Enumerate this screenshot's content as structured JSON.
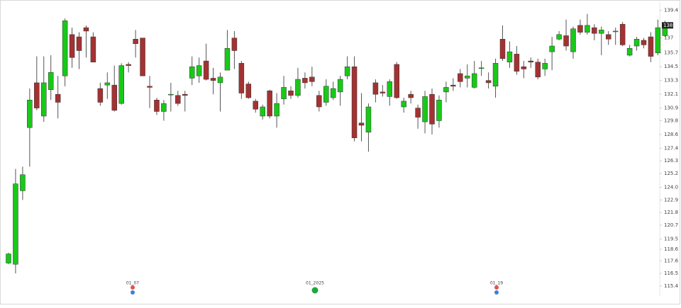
{
  "chart_data": {
    "type": "candlestick",
    "up_color": "#18c918",
    "down_color": "#a33232",
    "ylim": [
      114.6,
      140
    ],
    "yticks": [
      139.4,
      137,
      135.7,
      134.5,
      133.3,
      132.1,
      130.9,
      129.8,
      128.6,
      127.4,
      126.3,
      125.2,
      {
        "value": 124,
        "label": "124.0"
      },
      122.9,
      121.8,
      120.7,
      119.5,
      118.6,
      117.6,
      116.5,
      115.4
    ],
    "last_price": {
      "value": 138.1,
      "label": "138"
    },
    "annotations": [
      "01_07",
      "01_2025",
      "01_19"
    ],
    "open": [
      117.4,
      117.3,
      123.7,
      129.2,
      133.1,
      130.2,
      132.5,
      132.1,
      133.7,
      137.3,
      137.1,
      137.9,
      137.1,
      132.6,
      132.9,
      132.9,
      131.3,
      134.7,
      136.9,
      137.0,
      132.8,
      131.6,
      130.6,
      132.1,
      132.0,
      132.1,
      133.5,
      133.7,
      135.0,
      133.5,
      133.1,
      134.2,
      137.0,
      134.8,
      133.0,
      131.5,
      130.2,
      132.4,
      130.2,
      131.7,
      132.4,
      132.0,
      133.5,
      133.6,
      132.0,
      131.4,
      131.8,
      132.3,
      133.7,
      134.5,
      129.6,
      128.8,
      133.1,
      132.3,
      131.9,
      134.7,
      131.0,
      132.1,
      130.9,
      129.7,
      132.1,
      129.8,
      132.3,
      132.9,
      133.9,
      133.5,
      132.7,
      134.4,
      133.3,
      132.8,
      136.9,
      134.9,
      135.6,
      134.5,
      135.0,
      134.9,
      134.3,
      135.8,
      136.9,
      137.2,
      135.8,
      138.1,
      137.5,
      137.9,
      137.4,
      137.3,
      137.6,
      138.2,
      135.5,
      136.3,
      136.8,
      137.1,
      135.7,
      137.2
    ],
    "high": [
      118.3,
      125.6,
      125.8,
      132.6,
      135.4,
      135.4,
      135.5,
      133.7,
      138.7,
      137.9,
      137.5,
      138.1,
      137.5,
      133.1,
      134.0,
      134.6,
      134.8,
      134.9,
      137.7,
      137.0,
      133.7,
      131.8,
      131.6,
      133.1,
      132.4,
      132.4,
      135.4,
      135.3,
      136.5,
      134.4,
      134.0,
      137.7,
      137.6,
      135.0,
      133.2,
      131.7,
      131.2,
      132.5,
      132.2,
      133.7,
      132.8,
      134.4,
      134.0,
      134.5,
      132.4,
      133.4,
      133.2,
      133.7,
      135.4,
      135.4,
      132.2,
      131.3,
      133.4,
      132.9,
      133.4,
      134.9,
      131.8,
      132.4,
      131.2,
      132.4,
      132.6,
      132.0,
      133.2,
      133.5,
      134.3,
      134.7,
      135.0,
      135.0,
      134.0,
      135.2,
      138.1,
      136.7,
      136.3,
      135.0,
      135.3,
      135.2,
      135.2,
      137.1,
      137.6,
      138.6,
      138.0,
      138.6,
      139.1,
      138.2,
      138.0,
      137.6,
      137.9,
      138.4,
      136.4,
      137.1,
      137.0,
      137.5,
      138.6,
      138.5
    ],
    "low": [
      117.3,
      116.5,
      122.9,
      125.8,
      130.7,
      129.7,
      131.6,
      130.0,
      132.8,
      134.4,
      134.3,
      135.3,
      134.9,
      131.1,
      131.7,
      130.6,
      131.2,
      134.0,
      135.3,
      133.7,
      130.9,
      130.3,
      129.8,
      130.6,
      131.1,
      130.6,
      132.9,
      133.1,
      133.3,
      132.1,
      130.6,
      134.2,
      134.3,
      131.7,
      131.7,
      130.5,
      129.9,
      130.0,
      129.2,
      131.2,
      131.7,
      131.8,
      132.6,
      132.8,
      130.6,
      131.1,
      131.6,
      131.1,
      133.4,
      128.0,
      128.0,
      127.1,
      131.4,
      131.9,
      131.1,
      131.7,
      130.5,
      131.3,
      129.1,
      128.7,
      128.6,
      129.2,
      131.4,
      132.4,
      132.7,
      132.7,
      132.6,
      133.7,
      132.6,
      131.8,
      135.0,
      134.4,
      133.8,
      133.5,
      134.4,
      133.4,
      133.7,
      134.2,
      136.8,
      135.9,
      135.2,
      137.3,
      137.3,
      136.8,
      135.5,
      136.4,
      136.4,
      136.3,
      135.4,
      135.9,
      136.1,
      134.9,
      135.5,
      137.1
    ],
    "close": [
      118.2,
      124.3,
      125.1,
      131.6,
      130.9,
      133.1,
      134.0,
      131.4,
      138.5,
      135.3,
      135.9,
      137.6,
      134.9,
      131.4,
      133.1,
      130.7,
      134.6,
      134.6,
      136.5,
      133.7,
      132.7,
      130.6,
      131.3,
      132.1,
      131.3,
      132.0,
      134.5,
      134.6,
      133.4,
      133.3,
      133.6,
      136.1,
      135.9,
      132.2,
      131.8,
      130.8,
      131.0,
      130.2,
      131.3,
      132.7,
      132.0,
      133.4,
      133.1,
      133.2,
      131.0,
      132.8,
      132.6,
      133.4,
      134.5,
      128.3,
      129.4,
      131.0,
      132.1,
      132.2,
      133.2,
      131.8,
      131.5,
      131.8,
      130.1,
      131.9,
      129.5,
      131.6,
      132.7,
      132.8,
      133.2,
      133.7,
      133.9,
      134.4,
      133.1,
      134.8,
      135.2,
      135.8,
      134.1,
      134.3,
      134.9,
      133.6,
      134.8,
      136.3,
      137.3,
      136.3,
      137.8,
      137.5,
      138.1,
      137.4,
      137.7,
      136.9,
      137.6,
      136.4,
      136.1,
      136.9,
      136.4,
      135.4,
      137.9,
      138.1
    ]
  }
}
